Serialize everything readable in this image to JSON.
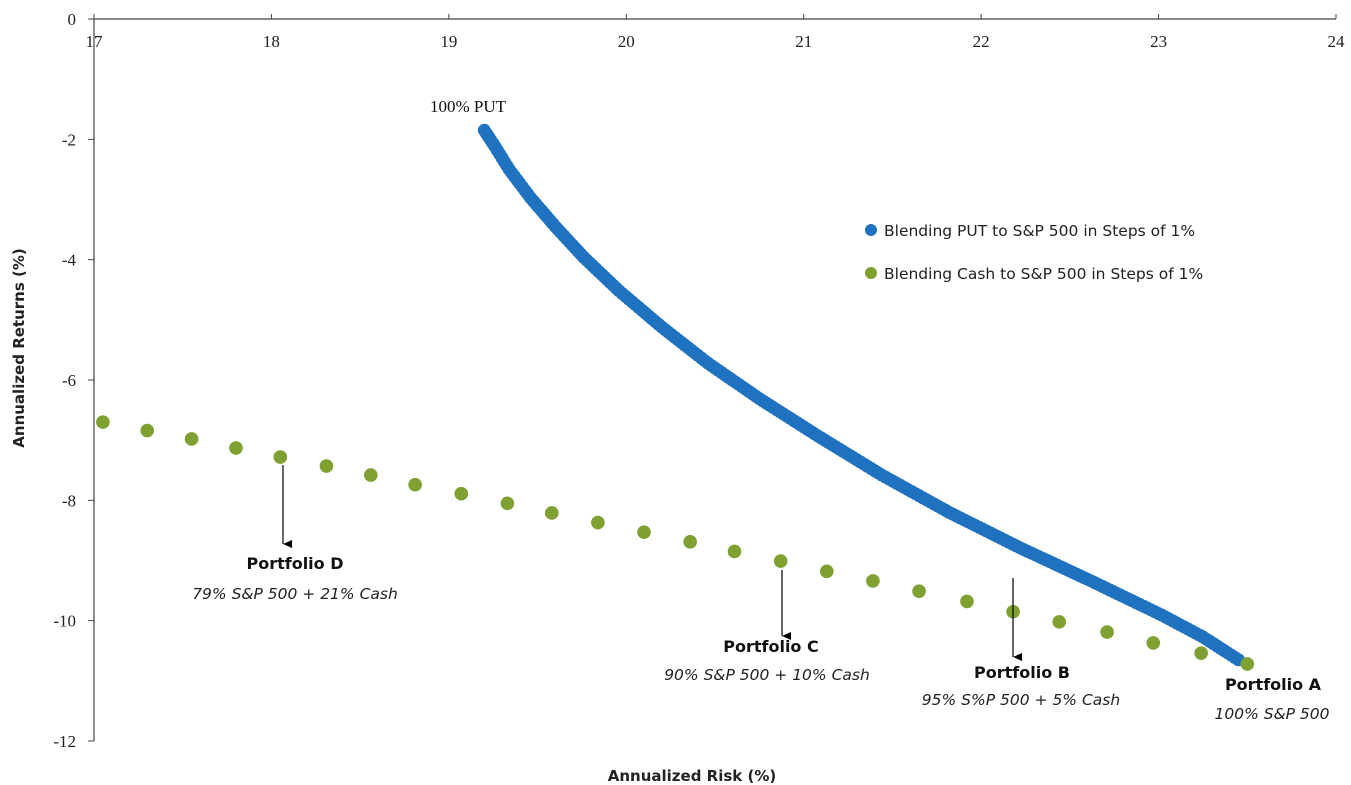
{
  "chart_data": {
    "type": "scatter",
    "xlabel": "Annualized Risk (%)",
    "ylabel": "Annualized Returns (%)",
    "xlim": [
      17,
      24
    ],
    "ylim": [
      -12,
      0
    ],
    "x_ticks": [
      17,
      18,
      19,
      20,
      21,
      22,
      23,
      24
    ],
    "y_ticks": [
      0,
      -2,
      -4,
      -6,
      -8,
      -10,
      -12
    ],
    "x_axis_position": "top",
    "grid": false,
    "legend_position": "top-right",
    "series": [
      {
        "name": "Blending PUT to S&P 500 in Steps of 1%",
        "color": "#1f72c0",
        "points": [
          [
            19.2,
            -1.85
          ],
          [
            19.26,
            -2.12
          ],
          [
            19.34,
            -2.5
          ],
          [
            19.46,
            -2.97
          ],
          [
            19.6,
            -3.45
          ],
          [
            19.76,
            -3.96
          ],
          [
            19.96,
            -4.52
          ],
          [
            20.2,
            -5.12
          ],
          [
            20.46,
            -5.72
          ],
          [
            20.75,
            -6.31
          ],
          [
            21.08,
            -6.93
          ],
          [
            21.44,
            -7.58
          ],
          [
            21.82,
            -8.2
          ],
          [
            22.22,
            -8.79
          ],
          [
            22.62,
            -9.34
          ],
          [
            23.02,
            -9.91
          ],
          [
            23.25,
            -10.27
          ],
          [
            23.45,
            -10.65
          ]
        ]
      },
      {
        "name": "Blending Cash to S&P 500 in Steps of 1%",
        "color": "#7ea132",
        "points": [
          [
            17.05,
            -6.7
          ],
          [
            17.3,
            -6.84
          ],
          [
            17.55,
            -6.98
          ],
          [
            17.8,
            -7.13
          ],
          [
            18.05,
            -7.28
          ],
          [
            18.31,
            -7.43
          ],
          [
            18.56,
            -7.58
          ],
          [
            18.81,
            -7.74
          ],
          [
            19.07,
            -7.89
          ],
          [
            19.33,
            -8.05
          ],
          [
            19.58,
            -8.21
          ],
          [
            19.84,
            -8.37
          ],
          [
            20.1,
            -8.53
          ],
          [
            20.36,
            -8.69
          ],
          [
            20.61,
            -8.85
          ],
          [
            20.87,
            -9.01
          ],
          [
            21.13,
            -9.18
          ],
          [
            21.39,
            -9.34
          ],
          [
            21.65,
            -9.51
          ],
          [
            21.92,
            -9.68
          ],
          [
            22.18,
            -9.85
          ],
          [
            22.44,
            -10.02
          ],
          [
            22.71,
            -10.19
          ],
          [
            22.97,
            -10.37
          ],
          [
            23.24,
            -10.54
          ],
          [
            23.5,
            -10.72
          ]
        ]
      }
    ],
    "annotations": {
      "put": {
        "label": "100% PUT",
        "x": 19.2,
        "y": -1.85
      },
      "portfolios": [
        {
          "title": "Portfolio A",
          "subtitle": "100% S&P 500",
          "x": 23.5,
          "y": -10.72,
          "arrow": false
        },
        {
          "title": "Portfolio B",
          "subtitle": "95% S%P 500 + 5% Cash",
          "x": 22.18,
          "y": -9.85,
          "arrow": true
        },
        {
          "title": "Portfolio C",
          "subtitle": "90% S&P 500 + 10% Cash",
          "x": 20.87,
          "y": -9.01,
          "arrow": true
        },
        {
          "title": "Portfolio D",
          "subtitle": "79% S&P 500 + 21% Cash",
          "x": 18.05,
          "y": -7.28,
          "arrow": true
        }
      ]
    }
  }
}
